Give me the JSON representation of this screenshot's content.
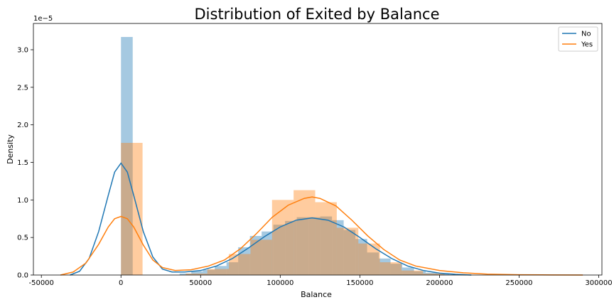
{
  "chart_data": {
    "type": "histogram+kde",
    "title": "Distribution of Exited by Balance",
    "xlabel": "Balance",
    "ylabel": "Density",
    "y_offset_label": "1e−5",
    "xlim": [
      -55000,
      302000
    ],
    "ylim": [
      0,
      3.35
    ],
    "y_scale_factor": 1e-05,
    "xticks": [
      -50000,
      0,
      50000,
      100000,
      150000,
      200000,
      250000,
      300000
    ],
    "yticks": [
      0.0,
      0.5,
      1.0,
      1.5,
      2.0,
      2.5,
      3.0
    ],
    "legend_position": "top-right",
    "grid": false,
    "series": [
      {
        "name": "No",
        "color": "#1f77b4",
        "bin_width": 7360,
        "bins": [
          [
            0,
            3.17
          ],
          [
            36800,
            0.02
          ],
          [
            44160,
            0.05
          ],
          [
            51520,
            0.07
          ],
          [
            58880,
            0.12
          ],
          [
            66240,
            0.17
          ],
          [
            73600,
            0.37
          ],
          [
            80960,
            0.52
          ],
          [
            88320,
            0.58
          ],
          [
            95680,
            0.67
          ],
          [
            103040,
            0.72
          ],
          [
            110400,
            0.77
          ],
          [
            117760,
            0.77
          ],
          [
            125120,
            0.78
          ],
          [
            132480,
            0.73
          ],
          [
            139840,
            0.6
          ],
          [
            147200,
            0.48
          ],
          [
            154560,
            0.3
          ],
          [
            161920,
            0.22
          ],
          [
            169280,
            0.15
          ],
          [
            176640,
            0.1
          ],
          [
            184000,
            0.05
          ],
          [
            191360,
            0.03
          ],
          [
            198720,
            0.015
          ],
          [
            206080,
            0.005
          ],
          [
            213440,
            0.003
          ]
        ],
        "kde": [
          [
            -32000,
            0
          ],
          [
            -26000,
            0.05
          ],
          [
            -20000,
            0.22
          ],
          [
            -14000,
            0.58
          ],
          [
            -8000,
            1.06
          ],
          [
            -4000,
            1.37
          ],
          [
            0,
            1.49
          ],
          [
            4000,
            1.37
          ],
          [
            8000,
            1.06
          ],
          [
            14000,
            0.58
          ],
          [
            20000,
            0.24
          ],
          [
            26000,
            0.08
          ],
          [
            32000,
            0.04
          ],
          [
            40000,
            0.04
          ],
          [
            50000,
            0.06
          ],
          [
            60000,
            0.12
          ],
          [
            70000,
            0.22
          ],
          [
            80000,
            0.36
          ],
          [
            90000,
            0.51
          ],
          [
            100000,
            0.64
          ],
          [
            110000,
            0.73
          ],
          [
            120000,
            0.76
          ],
          [
            130000,
            0.73
          ],
          [
            140000,
            0.64
          ],
          [
            150000,
            0.5
          ],
          [
            160000,
            0.35
          ],
          [
            170000,
            0.22
          ],
          [
            180000,
            0.12
          ],
          [
            190000,
            0.06
          ],
          [
            200000,
            0.025
          ],
          [
            210000,
            0.01
          ],
          [
            220000,
            0
          ]
        ]
      },
      {
        "name": "Yes",
        "color": "#ff7f0e",
        "bin_width": 13550,
        "bins": [
          [
            0,
            1.76
          ],
          [
            40650,
            0.02
          ],
          [
            54200,
            0.08
          ],
          [
            67750,
            0.28
          ],
          [
            81300,
            0.47
          ],
          [
            94850,
            1.0
          ],
          [
            108400,
            1.13
          ],
          [
            121950,
            0.97
          ],
          [
            135500,
            0.63
          ],
          [
            149050,
            0.42
          ],
          [
            162600,
            0.17
          ],
          [
            176150,
            0.06
          ],
          [
            189700,
            0.02
          ]
        ],
        "kde": [
          [
            -38000,
            0
          ],
          [
            -30000,
            0.04
          ],
          [
            -22000,
            0.16
          ],
          [
            -14000,
            0.41
          ],
          [
            -8000,
            0.64
          ],
          [
            -4000,
            0.75
          ],
          [
            0,
            0.78
          ],
          [
            4000,
            0.75
          ],
          [
            8000,
            0.64
          ],
          [
            14000,
            0.4
          ],
          [
            20000,
            0.2
          ],
          [
            26000,
            0.1
          ],
          [
            34000,
            0.06
          ],
          [
            44000,
            0.07
          ],
          [
            55000,
            0.12
          ],
          [
            65000,
            0.2
          ],
          [
            75000,
            0.35
          ],
          [
            85000,
            0.55
          ],
          [
            95000,
            0.77
          ],
          [
            105000,
            0.93
          ],
          [
            115000,
            1.02
          ],
          [
            120000,
            1.04
          ],
          [
            125000,
            1.02
          ],
          [
            135000,
            0.92
          ],
          [
            145000,
            0.73
          ],
          [
            155000,
            0.52
          ],
          [
            165000,
            0.34
          ],
          [
            175000,
            0.2
          ],
          [
            185000,
            0.12
          ],
          [
            200000,
            0.06
          ],
          [
            215000,
            0.03
          ],
          [
            230000,
            0.012
          ],
          [
            250000,
            0.004
          ],
          [
            270000,
            0.001
          ],
          [
            290000,
            0
          ]
        ]
      }
    ]
  }
}
